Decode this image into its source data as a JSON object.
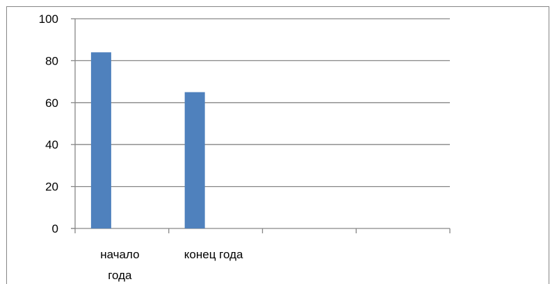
{
  "chart_data": {
    "type": "bar",
    "categories": [
      "начало года",
      "конец года",
      "",
      ""
    ],
    "category_label_lines": [
      [
        "начало",
        "года"
      ],
      [
        "конец года"
      ],
      [
        ""
      ],
      [
        ""
      ]
    ],
    "series": [
      {
        "name": "",
        "values": [
          84,
          65,
          null,
          null
        ],
        "color": "#4f81bd"
      }
    ],
    "ylim": [
      0,
      100
    ],
    "yticks": [
      0,
      20,
      40,
      60,
      80,
      100
    ],
    "grid": true,
    "title": "",
    "xlabel": "",
    "ylabel": "",
    "legend": "none"
  },
  "colors": {
    "bar": "#4f81bd",
    "grid": "#868686",
    "axis": "#868686",
    "frame": "#868686"
  }
}
